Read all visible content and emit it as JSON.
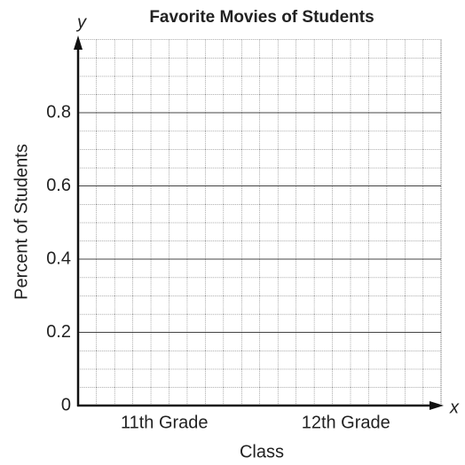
{
  "chart_data": {
    "type": "bar",
    "title": "Favorite Movies of Students",
    "x_label": "Class",
    "y_label": "Percent of Students",
    "x_axis_letter": "x",
    "y_axis_letter": "y",
    "categories": [
      "11th Grade",
      "12th Grade"
    ],
    "ylim": [
      0,
      1
    ],
    "yticks": [
      0,
      0.2,
      0.4,
      0.6,
      0.8
    ],
    "grid": true
  }
}
